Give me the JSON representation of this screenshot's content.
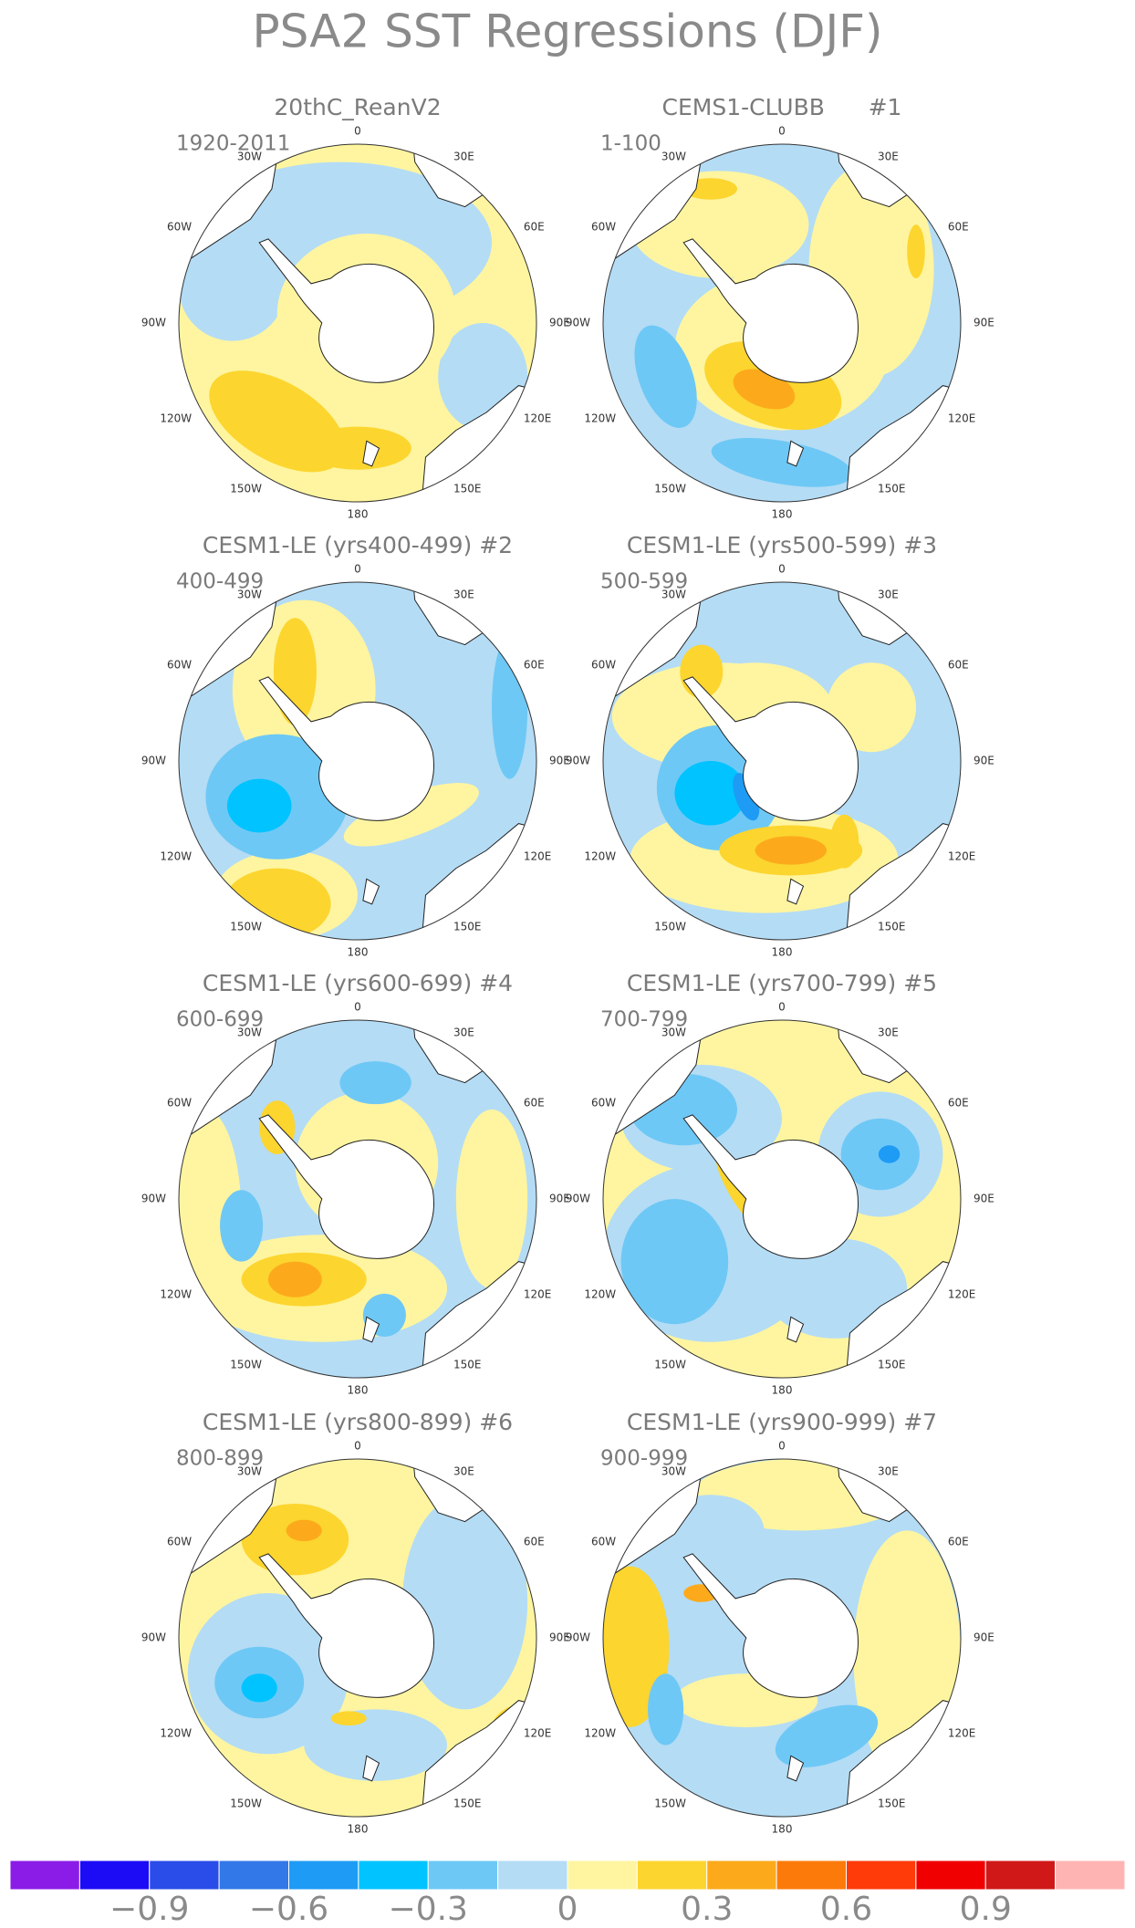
{
  "title": "PSA2 SST Regressions (DJF)",
  "panels": [
    {
      "title": "20thC_ReanV2",
      "subtitle": "1920-2011"
    },
    {
      "title": "CEMS1-CLUBB      #1",
      "subtitle": "1-100"
    },
    {
      "title": "CESM1-LE (yrs400-499) #2",
      "subtitle": "400-499"
    },
    {
      "title": "CESM1-LE (yrs500-599) #3",
      "subtitle": "500-599"
    },
    {
      "title": "CESM1-LE (yrs600-699) #4",
      "subtitle": "600-699"
    },
    {
      "title": "CESM1-LE (yrs700-799) #5",
      "subtitle": "700-799"
    },
    {
      "title": "CESM1-LE (yrs800-899) #6",
      "subtitle": "800-899"
    },
    {
      "title": "CESM1-LE (yrs900-999) #7",
      "subtitle": "900-999"
    }
  ],
  "longitude_labels": [
    "0",
    "30E",
    "60E",
    "90E",
    "120E",
    "150E",
    "180",
    "150W",
    "120W",
    "90W",
    "60W",
    "30W"
  ],
  "colorbar": {
    "colors": [
      "#8b1ce8",
      "#1c0cf5",
      "#2a4ce8",
      "#3278e8",
      "#1e9bf5",
      "#00c3ff",
      "#6ec8f5",
      "#b4dcf5",
      "#fff5a0",
      "#fcd52f",
      "#fcaa1b",
      "#fc7a0a",
      "#ff3b0a",
      "#f00000",
      "#d01818",
      "#ffb4b4"
    ],
    "levels": [
      -1.05,
      -0.9,
      -0.75,
      -0.6,
      -0.45,
      -0.3,
      -0.15,
      0,
      0.15,
      0.3,
      0.45,
      0.6,
      0.75,
      0.9,
      1.05
    ],
    "ticks": [
      {
        "value": -0.9,
        "label": "−0.9"
      },
      {
        "value": -0.6,
        "label": "−0.6"
      },
      {
        "value": -0.3,
        "label": "−0.3"
      },
      0,
      0.3,
      0.6,
      0.9
    ]
  }
}
